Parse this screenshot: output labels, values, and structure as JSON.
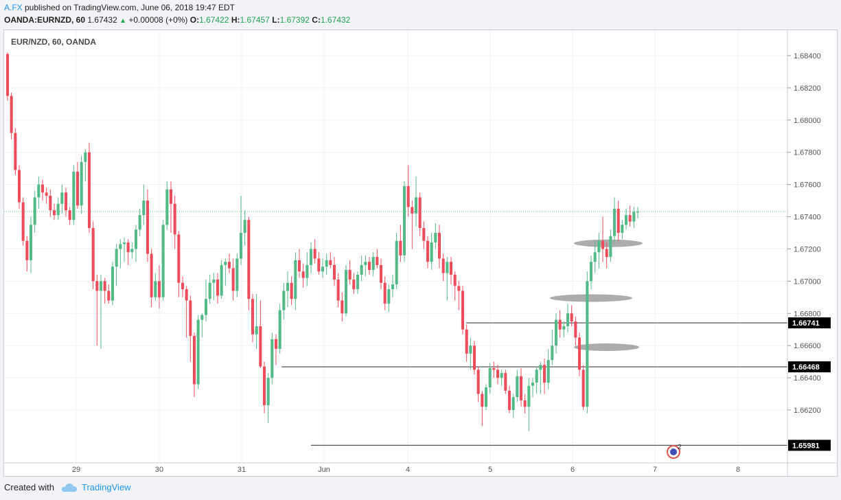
{
  "header": {
    "author": "A.FX",
    "published_text": " published on TradingView.com, June 06, 2018 19:47 EDT"
  },
  "quote": {
    "symbol": "OANDA:EURNZD, 60",
    "last": "1.67432",
    "change": "+0.00008 (+0%)",
    "o_label": "O:",
    "o": "1.67422",
    "h_label": "H:",
    "h": "1.67457",
    "l_label": "L:",
    "l": "1.67392",
    "c_label": "C:",
    "c": "1.67432"
  },
  "footer": {
    "created": "Created with",
    "brand": "TradingView"
  },
  "colors": {
    "up": "#53b987",
    "down": "#eb4d5c",
    "grid": "#eef0f3",
    "line": "#555555",
    "ellipse": "#9e9e9e"
  },
  "chart_data": {
    "type": "candlestick",
    "title": "EUR/NZD, 60, OANDA",
    "ylim": [
      1.6582,
      1.6852
    ],
    "y_ticks": [
      "1.68400",
      "1.68200",
      "1.68000",
      "1.67800",
      "1.67600",
      "1.67400",
      "1.67200",
      "1.67000",
      "1.66800",
      "1.66600",
      "1.66400",
      "1.66200"
    ],
    "x_ticks": [
      "29",
      "30",
      "31",
      "Jun",
      "4",
      "5",
      "6",
      "7",
      "8"
    ],
    "last_price": 1.67432,
    "horizontal_lines": [
      {
        "label": "1.66741",
        "price": 1.66741
      },
      {
        "label": "1.66468",
        "price": 1.66468
      },
      {
        "label": "1.65981",
        "price": 1.65981
      }
    ],
    "highlight_zones": [
      {
        "price": 1.67235
      },
      {
        "price": 1.66895
      },
      {
        "price": 1.6659
      }
    ],
    "event_marker": "2",
    "grid": true,
    "candles": [
      [
        1.6841,
        1.6842,
        1.6812,
        1.6815
      ],
      [
        1.6815,
        1.6817,
        1.6788,
        1.6792
      ],
      [
        1.6792,
        1.6795,
        1.6766,
        1.6769
      ],
      [
        1.6769,
        1.6772,
        1.6745,
        1.6749
      ],
      [
        1.6749,
        1.6752,
        1.6722,
        1.6725
      ],
      [
        1.6725,
        1.6728,
        1.6706,
        1.6713
      ],
      [
        1.6713,
        1.674,
        1.6705,
        1.6735
      ],
      [
        1.6735,
        1.6756,
        1.673,
        1.6752
      ],
      [
        1.6752,
        1.6765,
        1.6745,
        1.676
      ],
      [
        1.676,
        1.6763,
        1.675,
        1.6755
      ],
      [
        1.6755,
        1.6758,
        1.6748,
        1.6753
      ],
      [
        1.6753,
        1.6757,
        1.674,
        1.6744
      ],
      [
        1.6744,
        1.6748,
        1.6738,
        1.6741
      ],
      [
        1.6741,
        1.6752,
        1.6738,
        1.6748
      ],
      [
        1.6748,
        1.676,
        1.6742,
        1.6755
      ],
      [
        1.6755,
        1.6758,
        1.674,
        1.6744
      ],
      [
        1.6744,
        1.6746,
        1.6735,
        1.6738
      ],
      [
        1.6738,
        1.6772,
        1.6735,
        1.6768
      ],
      [
        1.6768,
        1.6774,
        1.6745,
        1.6747
      ],
      [
        1.6747,
        1.6778,
        1.6742,
        1.6774
      ],
      [
        1.6774,
        1.6782,
        1.6762,
        1.678
      ],
      [
        1.678,
        1.6786,
        1.673,
        1.6733
      ],
      [
        1.6733,
        1.6737,
        1.6695,
        1.67
      ],
      [
        1.67,
        1.6704,
        1.666,
        1.6694
      ],
      [
        1.6694,
        1.6704,
        1.6658,
        1.67
      ],
      [
        1.67,
        1.6702,
        1.6686,
        1.6694
      ],
      [
        1.6694,
        1.6698,
        1.6686,
        1.6688
      ],
      [
        1.6688,
        1.6712,
        1.6685,
        1.6709
      ],
      [
        1.6709,
        1.6723,
        1.6697,
        1.672
      ],
      [
        1.672,
        1.6726,
        1.6708,
        1.6723
      ],
      [
        1.6723,
        1.6727,
        1.6712,
        1.6724
      ],
      [
        1.6724,
        1.6726,
        1.671,
        1.6718
      ],
      [
        1.6718,
        1.6724,
        1.6714,
        1.672
      ],
      [
        1.672,
        1.6735,
        1.6712,
        1.6732
      ],
      [
        1.6732,
        1.6745,
        1.6728,
        1.6741
      ],
      [
        1.6741,
        1.676,
        1.6735,
        1.675
      ],
      [
        1.675,
        1.6757,
        1.6712,
        1.6717
      ],
      [
        1.6717,
        1.672,
        1.6684,
        1.669
      ],
      [
        1.669,
        1.6705,
        1.6688,
        1.67
      ],
      [
        1.67,
        1.671,
        1.6683,
        1.669
      ],
      [
        1.669,
        1.6738,
        1.6688,
        1.6735
      ],
      [
        1.6735,
        1.6762,
        1.6732,
        1.6757
      ],
      [
        1.6757,
        1.6762,
        1.673,
        1.6748
      ],
      [
        1.6748,
        1.6753,
        1.672,
        1.6729
      ],
      [
        1.6729,
        1.6731,
        1.669,
        1.6699
      ],
      [
        1.6699,
        1.6703,
        1.669,
        1.6695
      ],
      [
        1.6695,
        1.6697,
        1.6665,
        1.6688
      ],
      [
        1.6688,
        1.6691,
        1.665,
        1.6666
      ],
      [
        1.6666,
        1.6668,
        1.6628,
        1.6636
      ],
      [
        1.6636,
        1.6679,
        1.6633,
        1.6676
      ],
      [
        1.6676,
        1.668,
        1.6665,
        1.6679
      ],
      [
        1.6679,
        1.6701,
        1.6675,
        1.6689
      ],
      [
        1.6689,
        1.6704,
        1.6686,
        1.6699
      ],
      [
        1.6699,
        1.6705,
        1.6688,
        1.6701
      ],
      [
        1.6701,
        1.6705,
        1.6686,
        1.6691
      ],
      [
        1.6691,
        1.6713,
        1.6689,
        1.671
      ],
      [
        1.671,
        1.6714,
        1.6697,
        1.6712
      ],
      [
        1.6712,
        1.6717,
        1.6705,
        1.6708
      ],
      [
        1.6708,
        1.6714,
        1.6688,
        1.6694
      ],
      [
        1.6694,
        1.6717,
        1.669,
        1.6714
      ],
      [
        1.6714,
        1.6753,
        1.671,
        1.673
      ],
      [
        1.673,
        1.6744,
        1.6722,
        1.6738
      ],
      [
        1.6738,
        1.674,
        1.6682,
        1.6689
      ],
      [
        1.6689,
        1.6692,
        1.6662,
        1.6667
      ],
      [
        1.6667,
        1.6692,
        1.6658,
        1.6672
      ],
      [
        1.6672,
        1.6688,
        1.6646,
        1.6647
      ],
      [
        1.6647,
        1.665,
        1.6618,
        1.6623
      ],
      [
        1.6623,
        1.6643,
        1.6612,
        1.664
      ],
      [
        1.664,
        1.6668,
        1.6636,
        1.6664
      ],
      [
        1.6664,
        1.6667,
        1.6648,
        1.6658
      ],
      [
        1.6658,
        1.6686,
        1.6655,
        1.6682
      ],
      [
        1.6682,
        1.6699,
        1.6676,
        1.6694
      ],
      [
        1.6694,
        1.6706,
        1.6684,
        1.6699
      ],
      [
        1.6699,
        1.6703,
        1.6685,
        1.6689
      ],
      [
        1.6689,
        1.6718,
        1.6682,
        1.6713
      ],
      [
        1.6713,
        1.672,
        1.6702,
        1.6706
      ],
      [
        1.6706,
        1.6711,
        1.6696,
        1.6702
      ],
      [
        1.6702,
        1.6718,
        1.6697,
        1.671
      ],
      [
        1.671,
        1.6724,
        1.6705,
        1.672
      ],
      [
        1.672,
        1.6726,
        1.6711,
        1.6714
      ],
      [
        1.6714,
        1.6718,
        1.6704,
        1.6706
      ],
      [
        1.6706,
        1.6714,
        1.6702,
        1.6709
      ],
      [
        1.6709,
        1.6717,
        1.6704,
        1.6713
      ],
      [
        1.6713,
        1.6718,
        1.6708,
        1.671
      ],
      [
        1.671,
        1.6715,
        1.6697,
        1.6701
      ],
      [
        1.6701,
        1.6705,
        1.6684,
        1.6688
      ],
      [
        1.6688,
        1.6693,
        1.6675,
        1.668
      ],
      [
        1.668,
        1.671,
        1.6678,
        1.6707
      ],
      [
        1.6707,
        1.6713,
        1.6698,
        1.6701
      ],
      [
        1.6701,
        1.6705,
        1.6692,
        1.6695
      ],
      [
        1.6695,
        1.6706,
        1.6692,
        1.6704
      ],
      [
        1.6704,
        1.6716,
        1.67,
        1.671
      ],
      [
        1.671,
        1.6716,
        1.6703,
        1.6712
      ],
      [
        1.6712,
        1.6715,
        1.6704,
        1.6707
      ],
      [
        1.6707,
        1.6718,
        1.6703,
        1.6715
      ],
      [
        1.6715,
        1.672,
        1.6708,
        1.671
      ],
      [
        1.671,
        1.6714,
        1.6695,
        1.6699
      ],
      [
        1.6699,
        1.6703,
        1.6682,
        1.6686
      ],
      [
        1.6686,
        1.6698,
        1.6681,
        1.6695
      ],
      [
        1.6695,
        1.6704,
        1.669,
        1.6698
      ],
      [
        1.6698,
        1.673,
        1.6695,
        1.6725
      ],
      [
        1.6725,
        1.6735,
        1.6712,
        1.6716
      ],
      [
        1.6716,
        1.6762,
        1.6712,
        1.6759
      ],
      [
        1.6759,
        1.6772,
        1.674,
        1.6746
      ],
      [
        1.6746,
        1.675,
        1.672,
        1.6742
      ],
      [
        1.6742,
        1.6765,
        1.6734,
        1.6752
      ],
      [
        1.6752,
        1.6755,
        1.6728,
        1.6733
      ],
      [
        1.6733,
        1.6737,
        1.672,
        1.6725
      ],
      [
        1.6725,
        1.6728,
        1.6708,
        1.6712
      ],
      [
        1.6712,
        1.673,
        1.6707,
        1.6724
      ],
      [
        1.6724,
        1.6736,
        1.672,
        1.673
      ],
      [
        1.673,
        1.6735,
        1.6708,
        1.6714
      ],
      [
        1.6714,
        1.6717,
        1.67,
        1.6705
      ],
      [
        1.6705,
        1.6715,
        1.6688,
        1.6712
      ],
      [
        1.6712,
        1.6715,
        1.6698,
        1.6704
      ],
      [
        1.6704,
        1.6706,
        1.6688,
        1.6697
      ],
      [
        1.6697,
        1.67,
        1.6682,
        1.6694
      ],
      [
        1.6694,
        1.6697,
        1.6667,
        1.667
      ],
      [
        1.667,
        1.6673,
        1.665,
        1.6655
      ],
      [
        1.6655,
        1.6665,
        1.6645,
        1.666
      ],
      [
        1.666,
        1.6663,
        1.6642,
        1.6645
      ],
      [
        1.6645,
        1.6647,
        1.6625,
        1.663
      ],
      [
        1.663,
        1.6632,
        1.661,
        1.6622
      ],
      [
        1.6622,
        1.6636,
        1.662,
        1.6634
      ],
      [
        1.6634,
        1.6649,
        1.663,
        1.6646
      ],
      [
        1.6646,
        1.665,
        1.664,
        1.6645
      ],
      [
        1.6645,
        1.6648,
        1.6636,
        1.664
      ],
      [
        1.664,
        1.6645,
        1.6635,
        1.6643
      ],
      [
        1.6643,
        1.6645,
        1.663,
        1.6632
      ],
      [
        1.6632,
        1.6635,
        1.6618,
        1.662
      ],
      [
        1.662,
        1.663,
        1.6615,
        1.6628
      ],
      [
        1.6628,
        1.6645,
        1.6625,
        1.6641
      ],
      [
        1.6641,
        1.6646,
        1.6622,
        1.6626
      ],
      [
        1.6626,
        1.663,
        1.6618,
        1.6622
      ],
      [
        1.6622,
        1.664,
        1.6607,
        1.6635
      ],
      [
        1.6635,
        1.664,
        1.6628,
        1.6637
      ],
      [
        1.6637,
        1.6647,
        1.663,
        1.6645
      ],
      [
        1.6645,
        1.665,
        1.663,
        1.6648
      ],
      [
        1.6648,
        1.6652,
        1.663,
        1.6637
      ],
      [
        1.6637,
        1.6658,
        1.6633,
        1.6651
      ],
      [
        1.6651,
        1.667,
        1.6648,
        1.666
      ],
      [
        1.666,
        1.668,
        1.6655,
        1.6676
      ],
      [
        1.6676,
        1.6682,
        1.6665,
        1.667
      ],
      [
        1.667,
        1.6675,
        1.6665,
        1.6672
      ],
      [
        1.6672,
        1.6686,
        1.6668,
        1.668
      ],
      [
        1.668,
        1.6685,
        1.6672,
        1.6675
      ],
      [
        1.6675,
        1.6678,
        1.666,
        1.6665
      ],
      [
        1.6665,
        1.6668,
        1.6641,
        1.6645
      ],
      [
        1.6645,
        1.6648,
        1.662,
        1.6622
      ],
      [
        1.6622,
        1.6706,
        1.6618,
        1.67
      ],
      [
        1.67,
        1.6716,
        1.6695,
        1.6712
      ],
      [
        1.6712,
        1.6725,
        1.6705,
        1.6718
      ],
      [
        1.6718,
        1.673,
        1.6708,
        1.6725
      ],
      [
        1.6725,
        1.674,
        1.6712,
        1.672
      ],
      [
        1.672,
        1.6724,
        1.6708,
        1.6715
      ],
      [
        1.6715,
        1.6732,
        1.6712,
        1.6728
      ],
      [
        1.6728,
        1.6752,
        1.6724,
        1.6745
      ],
      [
        1.6745,
        1.675,
        1.6725,
        1.673
      ],
      [
        1.673,
        1.6738,
        1.6726,
        1.6735
      ],
      [
        1.6735,
        1.6745,
        1.6732,
        1.6741
      ],
      [
        1.6741,
        1.6747,
        1.6734,
        1.6737
      ],
      [
        1.6737,
        1.6746,
        1.6733,
        1.6743
      ],
      [
        1.6743,
        1.6746,
        1.6739,
        1.6743
      ]
    ]
  }
}
